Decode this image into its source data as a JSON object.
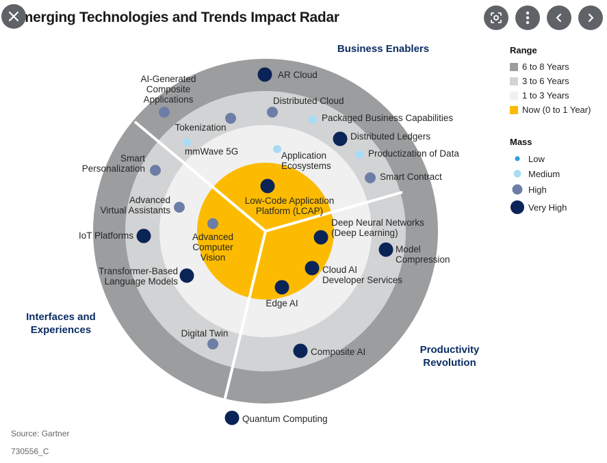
{
  "viewer": {
    "close_icon": "close-icon",
    "lens_icon": "lens-icon",
    "more_icon": "more-vert-icon",
    "prev_icon": "chevron-left-icon",
    "next_icon": "chevron-right-icon"
  },
  "title": "Emerging Technologies and Trends Impact Radar",
  "sectors": {
    "business": [
      "Business Enablers"
    ],
    "interfaces": [
      "Interfaces and",
      "Experiences"
    ],
    "productivity": [
      "Productivity",
      "Revolution"
    ]
  },
  "colors": {
    "ring_6_8": "#9b9d9f",
    "ring_3_6": "#d2d3d4",
    "ring_1_3": "#f0f0f0",
    "ring_now": "#fcbb00",
    "low": "#2f9fdc",
    "medium": "#a8dcf5",
    "high": "#6d7ea6",
    "very_high": "#0b2457",
    "sector_title": "#0b2d63"
  },
  "legend": {
    "range_title": "Range",
    "range": [
      {
        "label": "6 to 8 Years",
        "color": "#9b9d9f"
      },
      {
        "label": "3 to 6 Years",
        "color": "#d2d3d4"
      },
      {
        "label": "1 to 3 Years",
        "color": "#f0f0f0"
      },
      {
        "label": "Now (0 to 1 Year)",
        "color": "#fcbb00"
      }
    ],
    "mass_title": "Mass",
    "mass": [
      {
        "label": "Low",
        "level": "low"
      },
      {
        "label": "Medium",
        "level": "medium"
      },
      {
        "label": "High",
        "level": "high"
      },
      {
        "label": "Very High",
        "level": "very_high"
      }
    ]
  },
  "technologies": [
    {
      "id": "ar-cloud",
      "name": [
        "AR Cloud"
      ],
      "range": "6 to 8 Years",
      "mass": "very_high"
    },
    {
      "id": "ai-generated-composite-applications",
      "name": [
        "AI-Generated",
        "Composite",
        "Applications"
      ],
      "range": "6 to 8 Years",
      "mass": "high"
    },
    {
      "id": "distributed-cloud",
      "name": [
        "Distributed Cloud"
      ],
      "range": "3 to 6 Years",
      "mass": "high"
    },
    {
      "id": "tokenization",
      "name": [
        "Tokenization"
      ],
      "range": "3 to 6 Years",
      "mass": "high"
    },
    {
      "id": "packaged-business-capabilities",
      "name": [
        "Packaged Business Capabilities"
      ],
      "range": "3 to 6 Years",
      "mass": "medium"
    },
    {
      "id": "distributed-ledgers",
      "name": [
        "Distributed Ledgers"
      ],
      "range": "3 to 6 Years",
      "mass": "very_high"
    },
    {
      "id": "mmwave-5g",
      "name": [
        "mmWave 5G"
      ],
      "range": "1 to 3 Years",
      "mass": "medium"
    },
    {
      "id": "application-ecosystems",
      "name": [
        "Application",
        "Ecosystems"
      ],
      "range": "1 to 3 Years",
      "mass": "medium"
    },
    {
      "id": "productization-of-data",
      "name": [
        "Productization of Data"
      ],
      "range": "3 to 6 Years",
      "mass": "medium"
    },
    {
      "id": "smart-contract",
      "name": [
        "Smart Contract"
      ],
      "range": "3 to 6 Years",
      "mass": "high"
    },
    {
      "id": "smart-personalization",
      "name": [
        "Smart",
        "Personalization"
      ],
      "range": "3 to 6 Years",
      "mass": "high"
    },
    {
      "id": "lcap",
      "name": [
        "Low-Code Application",
        "Platform (LCAP)"
      ],
      "range": "Now (0 to 1 Year)",
      "mass": "very_high"
    },
    {
      "id": "advanced-virtual-assistants",
      "name": [
        "Advanced",
        "Virtual Assistants"
      ],
      "range": "1 to 3 Years",
      "mass": "high"
    },
    {
      "id": "deep-neural-networks",
      "name": [
        "Deep Neural Networks",
        "(Deep Learning)"
      ],
      "range": "Now (0 to 1 Year)",
      "mass": "very_high"
    },
    {
      "id": "iot-platforms",
      "name": [
        "IoT Platforms"
      ],
      "range": "3 to 6 Years",
      "mass": "very_high"
    },
    {
      "id": "advanced-computer-vision",
      "name": [
        "Advanced",
        "Computer",
        "Vision"
      ],
      "range": "Now (0 to 1 Year)",
      "mass": "high"
    },
    {
      "id": "model-compression",
      "name": [
        "Model",
        "Compression"
      ],
      "range": "3 to 6 Years",
      "mass": "very_high"
    },
    {
      "id": "cloud-ai-developer-services",
      "name": [
        "Cloud AI",
        "Developer Services"
      ],
      "range": "Now (0 to 1 Year)",
      "mass": "very_high"
    },
    {
      "id": "transformer-based-language-models",
      "name": [
        "Transformer-Based",
        "Language Models"
      ],
      "range": "1 to 3 Years",
      "mass": "very_high"
    },
    {
      "id": "edge-ai",
      "name": [
        "Edge AI"
      ],
      "range": "Now (0 to 1 Year)",
      "mass": "very_high"
    },
    {
      "id": "digital-twin",
      "name": [
        "Digital Twin"
      ],
      "range": "3 to 6 Years",
      "mass": "high"
    },
    {
      "id": "composite-ai",
      "name": [
        "Composite AI"
      ],
      "range": "3 to 6 Years",
      "mass": "very_high"
    },
    {
      "id": "quantum-computing",
      "name": [
        "Quantum Computing"
      ],
      "range": "6 to 8 Years",
      "mass": "very_high"
    }
  ],
  "footer": {
    "source": "Source: Gartner",
    "code": "730556_C"
  }
}
